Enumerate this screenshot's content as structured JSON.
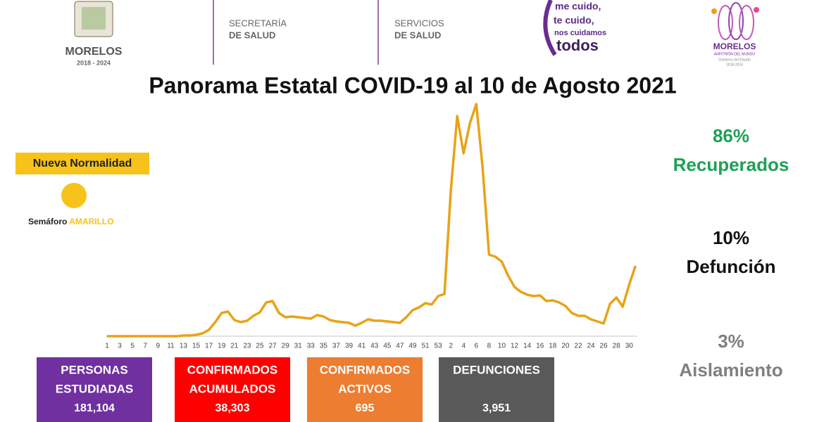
{
  "header": {
    "state_logo": {
      "name": "MORELOS",
      "years": "2018 - 2024"
    },
    "secretaria": {
      "line1": "SECRETARÍA",
      "line2": "DE SALUD"
    },
    "servicios": {
      "line1": "SERVICIOS",
      "line2": "DE SALUD"
    },
    "slogan": {
      "lines": [
        "me cuido,",
        "te cuido,",
        "nos cuidamos",
        "todos"
      ]
    },
    "host_logo": {
      "name": "MORELOS",
      "tagline": "ANFITRIÓN DEL MUNDO",
      "gov": "Gobierno del Estado",
      "years": "2018-2024"
    }
  },
  "semaforo": {
    "phase": "Nueva Normalidad",
    "label": "Semáforo",
    "level": "AMARILLO",
    "color": "#f7c31a"
  },
  "stats": [
    {
      "value": "86%",
      "label": "Recuperados",
      "color": "#1fa055"
    },
    {
      "value": "10%",
      "label": "Defunción",
      "color": "#111111"
    },
    {
      "value": "3%",
      "label": "Aislamiento",
      "color": "#7f7f7f"
    }
  ],
  "boxes": [
    {
      "lines": [
        "PERSONAS",
        "ESTUDIADAS"
      ],
      "value": "181,104",
      "color": "#7030a0"
    },
    {
      "lines": [
        "CONFIRMADOS",
        "ACUMULADOS"
      ],
      "value": "38,303",
      "color": "#ff0000"
    },
    {
      "lines": [
        "CONFIRMADOS",
        "ACTIVOS"
      ],
      "value": "695",
      "color": "#ed7d31"
    },
    {
      "lines": [
        "DEFUNCIONES"
      ],
      "value": "3,951",
      "color": "#595959"
    }
  ],
  "chart_data": {
    "type": "line",
    "title": "Panorama Estatal COVID-19 al 10 de Agosto 2021",
    "color": "#e8a317",
    "ylim": [
      0,
      340
    ],
    "categories": [
      "1",
      null,
      "3",
      null,
      "5",
      null,
      "7",
      null,
      "9",
      null,
      "11",
      null,
      "13",
      null,
      "15",
      null,
      "17",
      null,
      "19",
      null,
      "21",
      null,
      "23",
      null,
      "25",
      null,
      "27",
      null,
      "29",
      null,
      "31",
      null,
      "33",
      null,
      "35",
      null,
      "37",
      null,
      "39",
      null,
      "41",
      null,
      "43",
      null,
      "45",
      null,
      "47",
      null,
      "49",
      null,
      "51",
      null,
      "53",
      null,
      "2",
      null,
      "4",
      null,
      "6",
      null,
      "8",
      null,
      "10",
      null,
      "12",
      null,
      "14",
      null,
      "16",
      null,
      "18",
      null,
      "20",
      null,
      "22",
      null,
      "24",
      null,
      "26",
      null,
      "28",
      null,
      "30",
      null
    ],
    "values": [
      0,
      0,
      0,
      0,
      0,
      0,
      0,
      0,
      0,
      0,
      0,
      0,
      1,
      1,
      2,
      4,
      9,
      20,
      33,
      35,
      23,
      20,
      22,
      29,
      34,
      48,
      50,
      33,
      27,
      28,
      27,
      26,
      25,
      30,
      28,
      23,
      21,
      20,
      19,
      15,
      19,
      24,
      22,
      22,
      21,
      20,
      19,
      27,
      37,
      41,
      47,
      45,
      57,
      60,
      208,
      313,
      260,
      303,
      330,
      238,
      116,
      113,
      106,
      86,
      70,
      63,
      59,
      57,
      58,
      50,
      51,
      48,
      43,
      33,
      29,
      29,
      24,
      21,
      18,
      46,
      55,
      42,
      73,
      100
    ]
  }
}
